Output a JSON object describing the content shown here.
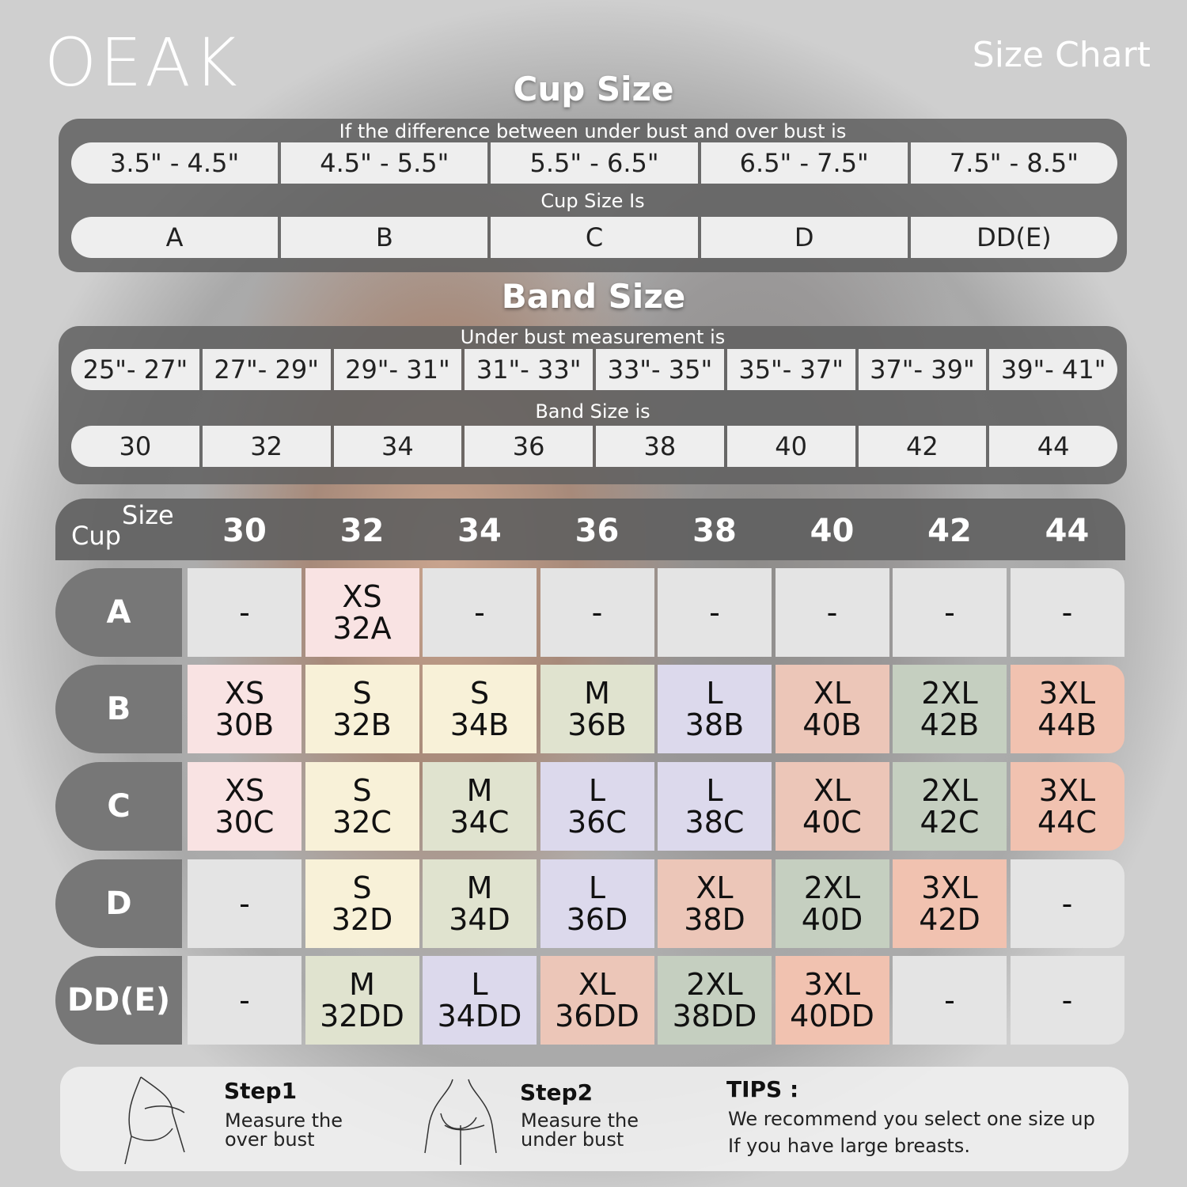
{
  "brand": {
    "logo": "OEAK",
    "title": "Size Chart"
  },
  "cup_section": {
    "title": "Cup Size",
    "caption": "If the  difference between under bust and over bust is",
    "differences": [
      "3.5\" -  4.5\"",
      "4.5\" -  5.5\"",
      "5.5\" -  6.5\"",
      "6.5\" -  7.5\"",
      "7.5\" -  8.5\""
    ],
    "cup_caption": "Cup Size Is",
    "cups": [
      "A",
      "B",
      "C",
      "D",
      "DD(E)"
    ]
  },
  "band_section": {
    "title": "Band Size",
    "caption": "Under bust measurement is",
    "ranges": [
      "25\"- 27\"",
      "27\"- 29\"",
      "29\"- 31\"",
      "31\"- 33\"",
      "33\"- 35\"",
      "35\"- 37\"",
      "37\"- 39\"",
      "39\"- 41\""
    ],
    "band_caption": "Band Size is",
    "bands": [
      "30",
      "32",
      "34",
      "36",
      "38",
      "40",
      "42",
      "44"
    ]
  },
  "grid": {
    "corner_size": "Size",
    "corner_cup": "Cup",
    "columns": [
      "30",
      "32",
      "34",
      "36",
      "38",
      "40",
      "42",
      "44"
    ],
    "rows": [
      {
        "cup": "A",
        "cells": [
          [
            "-"
          ],
          [
            "XS",
            "32A"
          ],
          [
            "-"
          ],
          [
            "-"
          ],
          [
            "-"
          ],
          [
            "-"
          ],
          [
            "-"
          ],
          [
            "-"
          ]
        ]
      },
      {
        "cup": "B",
        "cells": [
          [
            "XS",
            "30B"
          ],
          [
            "S",
            "32B"
          ],
          [
            "S",
            "34B"
          ],
          [
            "M",
            "36B"
          ],
          [
            "L",
            "38B"
          ],
          [
            "XL",
            "40B"
          ],
          [
            "2XL",
            "42B"
          ],
          [
            "3XL",
            "44B"
          ]
        ]
      },
      {
        "cup": "C",
        "cells": [
          [
            "XS",
            "30C"
          ],
          [
            "S",
            "32C"
          ],
          [
            "M",
            "34C"
          ],
          [
            "L",
            "36C"
          ],
          [
            "L",
            "38C"
          ],
          [
            "XL",
            "40C"
          ],
          [
            "2XL",
            "42C"
          ],
          [
            "3XL",
            "44C"
          ]
        ]
      },
      {
        "cup": "D",
        "cells": [
          [
            "-"
          ],
          [
            "S",
            "32D"
          ],
          [
            "M",
            "34D"
          ],
          [
            "L",
            "36D"
          ],
          [
            "XL",
            "38D"
          ],
          [
            "2XL",
            "40D"
          ],
          [
            "3XL",
            "42D"
          ],
          [
            "-"
          ]
        ]
      },
      {
        "cup": "DD(E)",
        "cells": [
          [
            "-"
          ],
          [
            "M",
            "32DD"
          ],
          [
            "L",
            "34DD"
          ],
          [
            "XL",
            "36DD"
          ],
          [
            "2XL",
            "38DD"
          ],
          [
            "3XL",
            "40DD"
          ],
          [
            "-"
          ],
          [
            "-"
          ]
        ]
      }
    ]
  },
  "size_colors": {
    "-": "#e4e4e4",
    "XS": "#f9e3e3",
    "S": "#f8f1d8",
    "M": "#e0e3cf",
    "L": "#dcd9ec",
    "XL": "#ecc6b8",
    "2XL": "#c5cfc0",
    "3XL": "#f1c2b0"
  },
  "steps": [
    {
      "title": "Step1",
      "desc1": "Measure the",
      "desc2": "over bust",
      "icon": "over-bust-figure-icon"
    },
    {
      "title": "Step2",
      "desc1": "Measure the",
      "desc2": "under bust",
      "icon": "under-bust-figure-icon"
    }
  ],
  "tips": {
    "title": "TIPS :",
    "line1": "We recommend you select one size up",
    "line2": "If you have large breasts."
  }
}
